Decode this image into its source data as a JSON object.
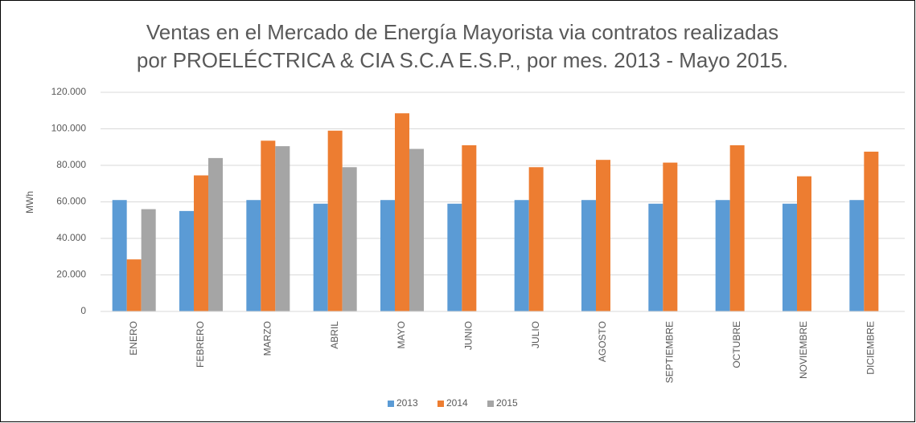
{
  "chart_data": {
    "type": "bar",
    "title": "Ventas en el Mercado de Energía Mayorista via contratos realizadas",
    "subtitle": "por PROELÉCTRICA & CIA S.C.A E.S.P., por mes. 2013 - Mayo 2015.",
    "y_label": "MWh",
    "categories": [
      "ENERO",
      "FEBRERO",
      "MARZO",
      "ABRIL",
      "MAYO",
      "JUNIO",
      "JULIO",
      "AGOSTO",
      "SEPTIEMBRE",
      "OCTUBRE",
      "NOVIEMBRE",
      "DICIEMBRE"
    ],
    "series": [
      {
        "name": "2013",
        "color": "#5b9bd5",
        "values": [
          61000,
          55000,
          61000,
          59000,
          61000,
          59000,
          61000,
          61000,
          59000,
          61000,
          59000,
          61000
        ]
      },
      {
        "name": "2014",
        "color": "#ed7d31",
        "values": [
          28500,
          74500,
          93500,
          99000,
          108500,
          91000,
          79000,
          83000,
          81500,
          91000,
          74000,
          87500
        ]
      },
      {
        "name": "2015",
        "color": "#a5a5a5",
        "values": [
          56000,
          84000,
          90500,
          79000,
          89000,
          null,
          null,
          null,
          null,
          null,
          null,
          null
        ]
      }
    ],
    "ylim": [
      0,
      120000
    ],
    "yticks": [
      0,
      {
        "value": 20000,
        "label": "20.000"
      },
      {
        "value": 40000,
        "label": "40.000"
      },
      {
        "value": 60000,
        "label": "60.000"
      },
      {
        "value": 80000,
        "label": "80.000"
      },
      {
        "value": 100000,
        "label": "100.000"
      },
      {
        "value": 120000,
        "label": "120.000"
      }
    ],
    "grid": true,
    "legend": "bottom"
  }
}
